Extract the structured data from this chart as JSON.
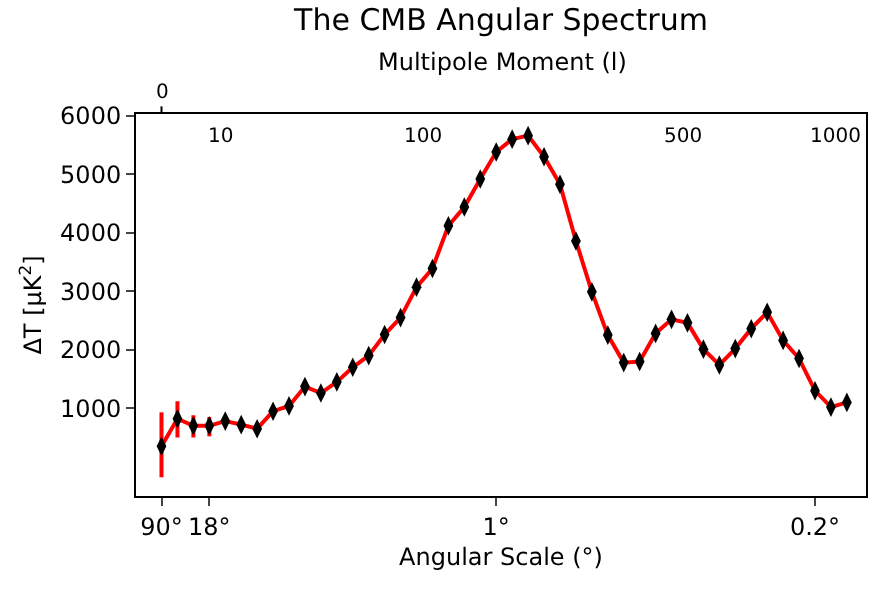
{
  "chart_data": {
    "type": "line",
    "title": "The CMB Angular Spectrum",
    "xlabel": "Angular Scale (°)",
    "ylabel": "ΔT [μK$^{2}$]",
    "x2label": "Multipole Moment (l)",
    "categories": [
      "90°",
      null,
      null,
      "18°",
      null,
      null,
      null,
      null,
      null,
      null,
      null,
      null,
      null,
      null,
      null,
      null,
      null,
      null,
      null,
      null,
      null,
      "1°",
      null,
      null,
      null,
      null,
      null,
      null,
      null,
      null,
      null,
      null,
      null,
      null,
      null,
      null,
      null,
      null,
      null,
      null,
      null,
      "0.2°",
      null,
      null
    ],
    "annotations": [
      "0",
      "10",
      "100",
      "500",
      "1000"
    ],
    "ylim": [
      -500,
      6030
    ],
    "yticks": [
      1000,
      2000,
      3000,
      4000,
      5000,
      6000
    ],
    "marker": "diamond",
    "line_style": "solid",
    "series": [
      {
        "color": "#ff0000",
        "values": [
          350,
          820,
          700,
          700,
          780,
          720,
          650,
          950,
          1040,
          1370,
          1260,
          1450,
          1700,
          1900,
          2260,
          2550,
          3070,
          3390,
          4120,
          4440,
          4920,
          5380,
          5600,
          5660,
          5300,
          4830,
          3860,
          2990,
          2250,
          1780,
          1800,
          2280,
          2520,
          2460,
          2010,
          1740,
          2020,
          2360,
          2640,
          2160,
          1850,
          1300,
          1020,
          1100
        ],
        "errors": [
          [
            -180,
            930
          ],
          [
            500,
            1120
          ],
          [
            500,
            880
          ],
          [
            520,
            850
          ],
          null,
          null,
          null,
          null,
          null,
          null,
          null,
          null,
          null,
          null,
          null,
          null,
          null,
          null,
          null,
          null,
          null,
          null,
          null,
          null,
          null,
          null,
          null,
          null,
          null,
          null,
          null,
          null,
          null,
          null,
          null,
          null,
          null,
          null,
          null,
          null,
          null,
          null,
          null,
          null
        ]
      }
    ]
  }
}
